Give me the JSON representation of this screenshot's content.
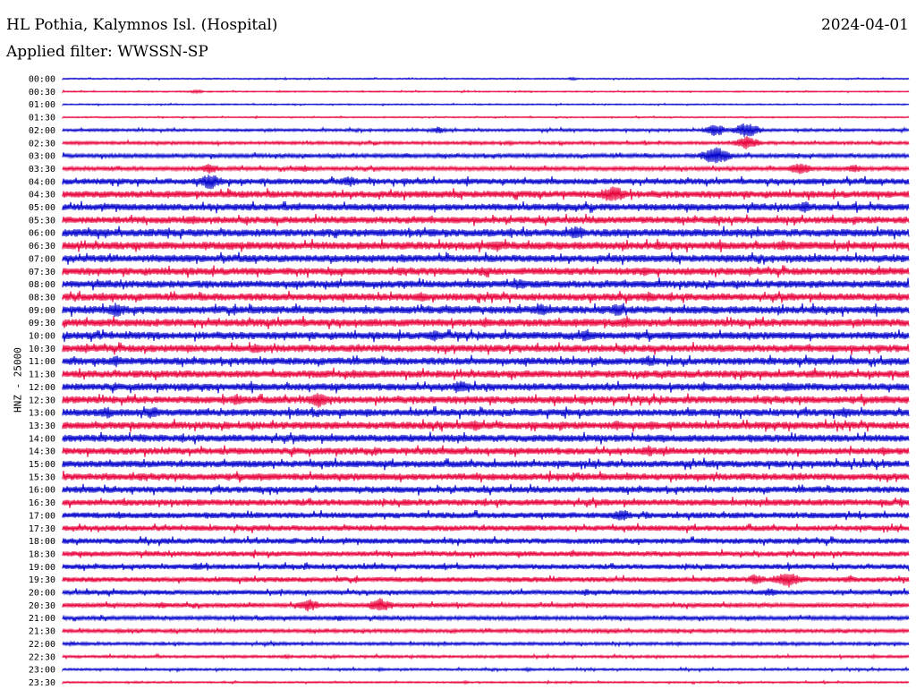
{
  "header": {
    "station": "HL Pothia, Kalymnos Isl. (Hospital)",
    "date": "2024-04-01",
    "filter": "Applied filter: WWSSN-SP"
  },
  "colors": {
    "even": "#0000cc",
    "odd": "#e8003a"
  },
  "chart_data": {
    "type": "line",
    "title": "HL Pothia, Kalymnos Isl. (Hospital)",
    "ylabel": "HNZ - 25000",
    "row_labels": [
      "00:00",
      "00:30",
      "01:00",
      "01:30",
      "02:00",
      "02:30",
      "03:00",
      "03:30",
      "04:00",
      "04:30",
      "05:00",
      "05:30",
      "06:00",
      "06:30",
      "07:00",
      "07:30",
      "08:00",
      "08:30",
      "09:00",
      "09:30",
      "10:00",
      "10:30",
      "11:00",
      "11:30",
      "12:00",
      "12:30",
      "13:00",
      "13:30",
      "14:00",
      "14:30",
      "15:00",
      "15:30",
      "16:00",
      "16:30",
      "17:00",
      "17:30",
      "18:00",
      "18:30",
      "19:00",
      "19:30",
      "20:00",
      "20:30",
      "21:00",
      "21:30",
      "22:00",
      "22:30",
      "23:00",
      "23:30"
    ],
    "amplitude_levels": [
      0.3,
      0.3,
      0.3,
      0.3,
      0.6,
      0.7,
      0.9,
      0.9,
      1.4,
      1.6,
      1.6,
      1.6,
      1.8,
      1.8,
      1.7,
      1.7,
      1.7,
      1.7,
      1.8,
      1.8,
      1.7,
      1.7,
      1.7,
      1.7,
      1.7,
      1.7,
      1.7,
      1.7,
      1.7,
      1.6,
      1.6,
      1.6,
      1.5,
      1.5,
      1.4,
      1.3,
      1.3,
      1.2,
      1.2,
      1.2,
      1.1,
      1.0,
      0.9,
      0.8,
      0.7,
      0.6,
      0.5,
      0.4
    ],
    "bursts": [
      [
        [
          640,
          0.4
        ]
      ],
      [
        [
          220,
          0.5
        ]
      ],
      [],
      [],
      [
        [
          490,
          1.0
        ],
        [
          835,
          2.2
        ],
        [
          800,
          1.8
        ]
      ],
      [
        [
          835,
          2.0
        ],
        [
          570,
          0.6
        ]
      ],
      [
        [
          800,
          2.6
        ],
        [
          455,
          0.8
        ],
        [
          140,
          0.5
        ]
      ],
      [
        [
          235,
          1.4
        ],
        [
          340,
          1.0
        ],
        [
          895,
          1.8
        ],
        [
          955,
          1.2
        ]
      ],
      [
        [
          235,
          2.2
        ],
        [
          390,
          1.6
        ]
      ],
      [
        [
          685,
          2.5
        ],
        [
          100,
          0.8
        ]
      ],
      [
        [
          900,
          1.6
        ],
        [
          330,
          0.8
        ]
      ],
      [
        [
          215,
          1.4
        ],
        [
          800,
          1.2
        ],
        [
          925,
          1.0
        ]
      ],
      [
        [
          645,
          2.0
        ],
        [
          690,
          1.2
        ],
        [
          85,
          1.0
        ]
      ],
      [
        [
          555,
          1.8
        ],
        [
          875,
          1.5
        ],
        [
          260,
          1.0
        ]
      ],
      [
        [
          450,
          1.2
        ],
        [
          190,
          1.2
        ],
        [
          815,
          1.0
        ]
      ],
      [
        [
          540,
          1.4
        ],
        [
          720,
          1.4
        ],
        [
          395,
          1.0
        ]
      ],
      [
        [
          580,
          1.6
        ],
        [
          335,
          1.2
        ],
        [
          720,
          1.0
        ]
      ],
      [
        [
          470,
          1.5
        ],
        [
          725,
          1.5
        ],
        [
          115,
          1.2
        ],
        [
          520,
          1.0
        ]
      ],
      [
        [
          130,
          2.0
        ],
        [
          605,
          1.8
        ],
        [
          690,
          1.8
        ],
        [
          285,
          1.2
        ]
      ],
      [
        [
          700,
          1.6
        ],
        [
          435,
          1.0
        ]
      ],
      [
        [
          485,
          1.6
        ],
        [
          655,
          1.8
        ],
        [
          590,
          1.0
        ]
      ],
      [
        [
          285,
          1.5
        ],
        [
          170,
          1.2
        ],
        [
          985,
          1.0
        ]
      ],
      [
        [
          130,
          1.6
        ],
        [
          725,
          1.6
        ],
        [
          665,
          1.2
        ]
      ],
      [
        [
          395,
          1.3
        ],
        [
          910,
          1.3
        ]
      ],
      [
        [
          515,
          1.8
        ],
        [
          880,
          1.4
        ],
        [
          205,
          1.0
        ]
      ],
      [
        [
          355,
          2.2
        ],
        [
          265,
          1.6
        ],
        [
          650,
          1.2
        ],
        [
          990,
          1.2
        ]
      ],
      [
        [
          170,
          1.8
        ],
        [
          120,
          1.6
        ],
        [
          945,
          1.6
        ],
        [
          785,
          1.0
        ]
      ],
      [
        [
          530,
          1.6
        ],
        [
          690,
          1.4
        ],
        [
          730,
          1.4
        ]
      ],
      [
        [
          160,
          1.2
        ],
        [
          725,
          1.1
        ]
      ],
      [
        [
          725,
          1.6
        ],
        [
          505,
          1.0
        ]
      ],
      [
        [
          295,
          1.0
        ],
        [
          150,
          0.9
        ]
      ],
      [
        [
          535,
          1.0
        ],
        [
          780,
          0.9
        ]
      ],
      [
        [
          290,
          1.0
        ],
        [
          430,
          0.9
        ]
      ],
      [
        [
          210,
          1.0
        ],
        [
          880,
          0.9
        ]
      ],
      [
        [
          695,
          1.8
        ],
        [
          400,
          0.9
        ]
      ],
      [
        [
          590,
          1.0
        ],
        [
          150,
          0.9
        ]
      ],
      [
        [
          330,
          0.9
        ],
        [
          790,
          0.9
        ]
      ],
      [
        [
          640,
          0.9
        ],
        [
          260,
          0.8
        ]
      ],
      [
        [
          220,
          1.1
        ],
        [
          870,
          0.9
        ]
      ],
      [
        [
          880,
          2.4
        ],
        [
          845,
          1.6
        ],
        [
          950,
          1.0
        ]
      ],
      [
        [
          860,
          1.2
        ],
        [
          655,
          1.0
        ],
        [
          120,
          0.8
        ]
      ],
      [
        [
          345,
          1.8
        ],
        [
          425,
          2.0
        ],
        [
          180,
          1.0
        ]
      ],
      [
        [
          380,
          1.0
        ],
        [
          600,
          0.8
        ]
      ],
      [
        [
          135,
          0.6
        ],
        [
          600,
          0.6
        ]
      ],
      [
        [
          80,
          0.6
        ],
        [
          760,
          0.6
        ],
        [
          875,
          0.6
        ]
      ],
      [
        [
          320,
          0.6
        ]
      ],
      [
        [
          425,
          0.5
        ],
        [
          590,
          0.5
        ]
      ],
      [
        [
          520,
          0.4
        ]
      ]
    ]
  }
}
